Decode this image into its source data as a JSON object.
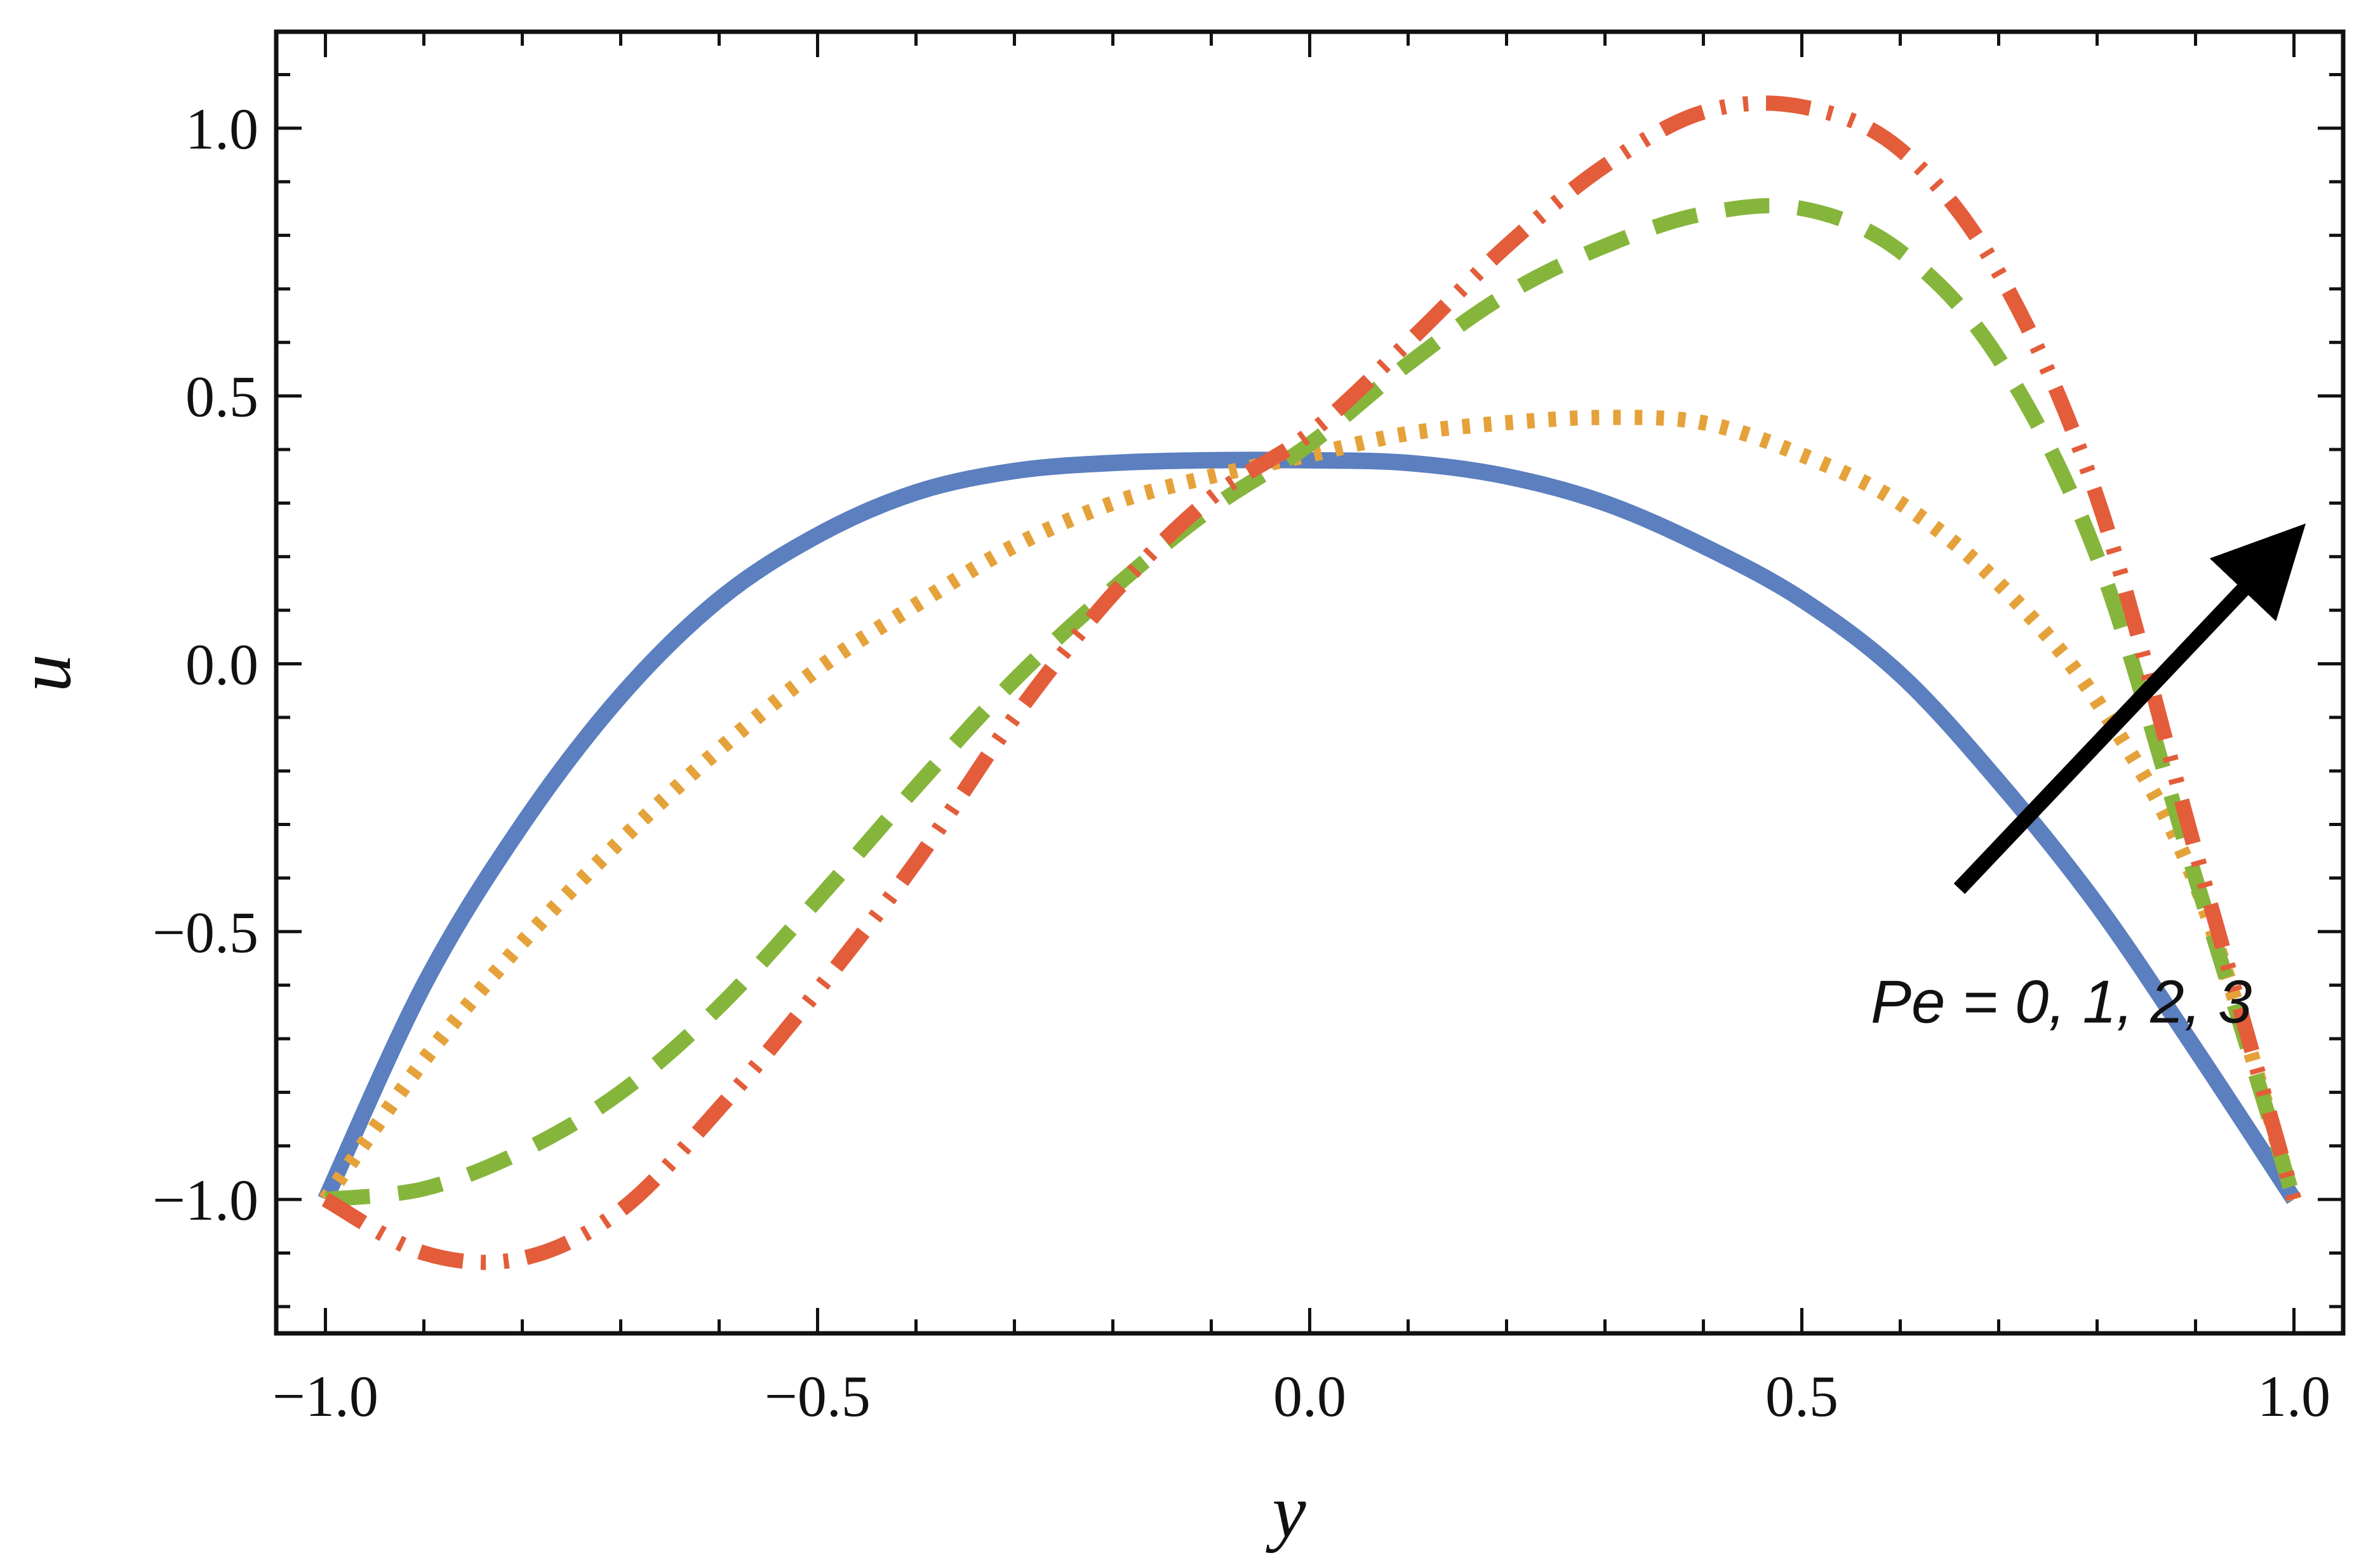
{
  "chart_data": {
    "type": "line",
    "title": "",
    "xlabel": "y",
    "ylabel": "u",
    "xlim": [
      -1.05,
      1.05
    ],
    "ylim": [
      -1.25,
      1.18
    ],
    "grid": false,
    "x_ticks": [
      {
        "value": -1.0,
        "label": "−1.0"
      },
      {
        "value": -0.5,
        "label": "−0.5"
      },
      {
        "value": 0.0,
        "label": "0.0"
      },
      {
        "value": 0.5,
        "label": "0.5"
      },
      {
        "value": 1.0,
        "label": "1.0"
      }
    ],
    "y_ticks": [
      {
        "value": -1.0,
        "label": "−1.0"
      },
      {
        "value": -0.5,
        "label": "−0.5"
      },
      {
        "value": 0.0,
        "label": "0.0"
      },
      {
        "value": 0.5,
        "label": "0.5"
      },
      {
        "value": 1.0,
        "label": "1.0"
      }
    ],
    "x": [
      -1.0,
      -0.9,
      -0.8,
      -0.7,
      -0.6,
      -0.5,
      -0.4,
      -0.3,
      -0.2,
      -0.1,
      0.0,
      0.1,
      0.2,
      0.3,
      0.4,
      0.5,
      0.6,
      0.7,
      0.8,
      0.9,
      1.0
    ],
    "series": [
      {
        "name": "Pe = 0",
        "color": "#5b7fbf",
        "style": "solid",
        "values": [
          -1.0,
          -0.6,
          -0.3,
          -0.06,
          0.12,
          0.24,
          0.32,
          0.36,
          0.375,
          0.38,
          0.38,
          0.375,
          0.35,
          0.3,
          0.22,
          0.12,
          -0.02,
          -0.22,
          -0.45,
          -0.72,
          -1.0
        ]
      },
      {
        "name": "Pe = 1",
        "color": "#e5a23a",
        "style": "dotted",
        "values": [
          -1.0,
          -0.74,
          -0.52,
          -0.33,
          -0.16,
          -0.01,
          0.11,
          0.22,
          0.3,
          0.35,
          0.39,
          0.43,
          0.45,
          0.46,
          0.45,
          0.39,
          0.3,
          0.15,
          -0.07,
          -0.41,
          -1.0
        ]
      },
      {
        "name": "Pe = 2",
        "color": "#86b53c",
        "style": "dashed",
        "values": [
          -1.0,
          -0.98,
          -0.91,
          -0.8,
          -0.64,
          -0.44,
          -0.23,
          -0.03,
          0.14,
          0.29,
          0.41,
          0.56,
          0.69,
          0.78,
          0.84,
          0.85,
          0.77,
          0.57,
          0.2,
          -0.4,
          -1.0
        ]
      },
      {
        "name": "Pe = 3",
        "color": "#e35d3a",
        "style": "dashdotdot",
        "values": [
          -1.0,
          -1.1,
          -1.11,
          -1.02,
          -0.83,
          -0.61,
          -0.37,
          -0.1,
          0.13,
          0.31,
          0.43,
          0.6,
          0.78,
          0.93,
          1.03,
          1.04,
          0.96,
          0.73,
          0.31,
          -0.35,
          -1.0
        ]
      }
    ],
    "annotations": [
      {
        "text": "Pe = 0, 1, 2, 3",
        "x": 0.57,
        "y": -0.67
      },
      {
        "type": "arrow",
        "from": [
          0.66,
          -0.42
        ],
        "to": [
          0.98,
          0.2
        ]
      }
    ]
  }
}
